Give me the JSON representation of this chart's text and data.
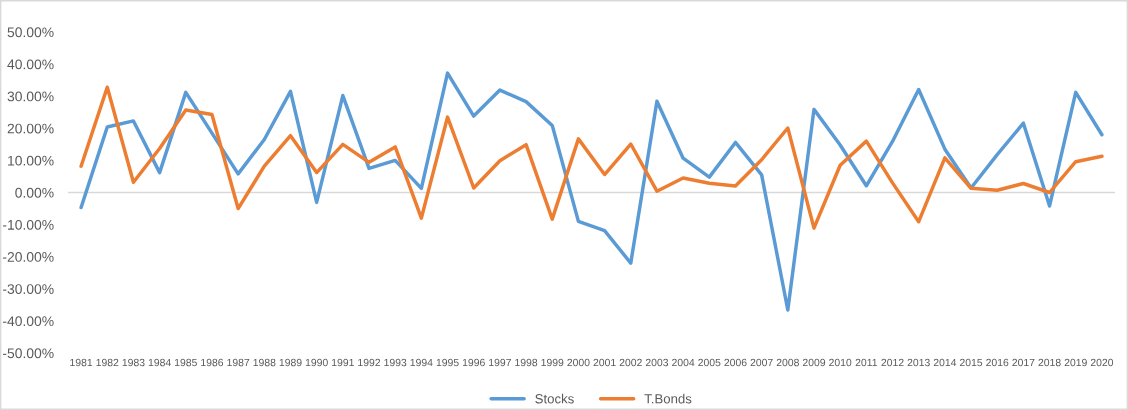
{
  "chart_data": {
    "type": "line",
    "categories": [
      "1981",
      "1982",
      "1983",
      "1984",
      "1985",
      "1986",
      "1987",
      "1988",
      "1989",
      "1990",
      "1991",
      "1992",
      "1993",
      "1994",
      "1995",
      "1996",
      "1997",
      "1998",
      "1999",
      "2000",
      "2001",
      "2002",
      "2003",
      "2004",
      "2005",
      "2006",
      "2007",
      "2008",
      "2009",
      "2010",
      "2011",
      "2012",
      "2013",
      "2014",
      "2015",
      "2016",
      "2017",
      "2018",
      "2019",
      "2020"
    ],
    "series": [
      {
        "name": "Stocks",
        "color": "#5b9bd5",
        "values": [
          -4.7,
          20.4,
          22.3,
          6.2,
          31.2,
          18.5,
          5.8,
          16.5,
          31.5,
          -3.1,
          30.2,
          7.5,
          10.0,
          1.3,
          37.2,
          23.8,
          31.9,
          28.3,
          20.9,
          -9.0,
          -11.9,
          -22.0,
          28.4,
          10.7,
          4.8,
          15.6,
          5.5,
          -36.6,
          25.9,
          14.8,
          2.1,
          15.9,
          32.1,
          13.5,
          1.4,
          11.8,
          21.6,
          -4.2,
          31.2,
          18.0
        ]
      },
      {
        "name": "T.Bonds",
        "color": "#ed7d31",
        "values": [
          8.2,
          32.8,
          3.2,
          13.7,
          25.7,
          24.3,
          -5.0,
          8.2,
          17.7,
          6.2,
          15.0,
          9.4,
          14.2,
          -8.0,
          23.5,
          1.4,
          9.9,
          14.9,
          -8.3,
          16.7,
          5.6,
          15.1,
          0.4,
          4.5,
          2.9,
          2.0,
          10.2,
          20.1,
          -11.1,
          8.5,
          16.0,
          3.0,
          -9.1,
          10.8,
          1.3,
          0.7,
          2.8,
          0.0,
          9.6,
          11.3
        ]
      }
    ],
    "ylim": [
      -50,
      50
    ],
    "yticks": [
      {
        "value": -50,
        "label": "-50.00%"
      },
      {
        "value": -40,
        "label": "-40.00%"
      },
      {
        "value": -30,
        "label": "-30.00%"
      },
      {
        "value": -20,
        "label": "-20.00%"
      },
      {
        "value": -10,
        "label": "-10.00%"
      },
      {
        "value": 0,
        "label": "0.00%"
      },
      {
        "value": 10,
        "label": "10.00%"
      },
      {
        "value": 20,
        "label": "20.00%"
      },
      {
        "value": 30,
        "label": "30.00%"
      },
      {
        "value": 40,
        "label": "40.00%"
      },
      {
        "value": 50,
        "label": "50.00%"
      }
    ],
    "ref_lines": [
      {
        "axis": "y",
        "value": 0,
        "color": "#d9d9d9"
      }
    ],
    "grid": false,
    "legend": "bottom",
    "marker": "none",
    "line_style": "solid"
  }
}
